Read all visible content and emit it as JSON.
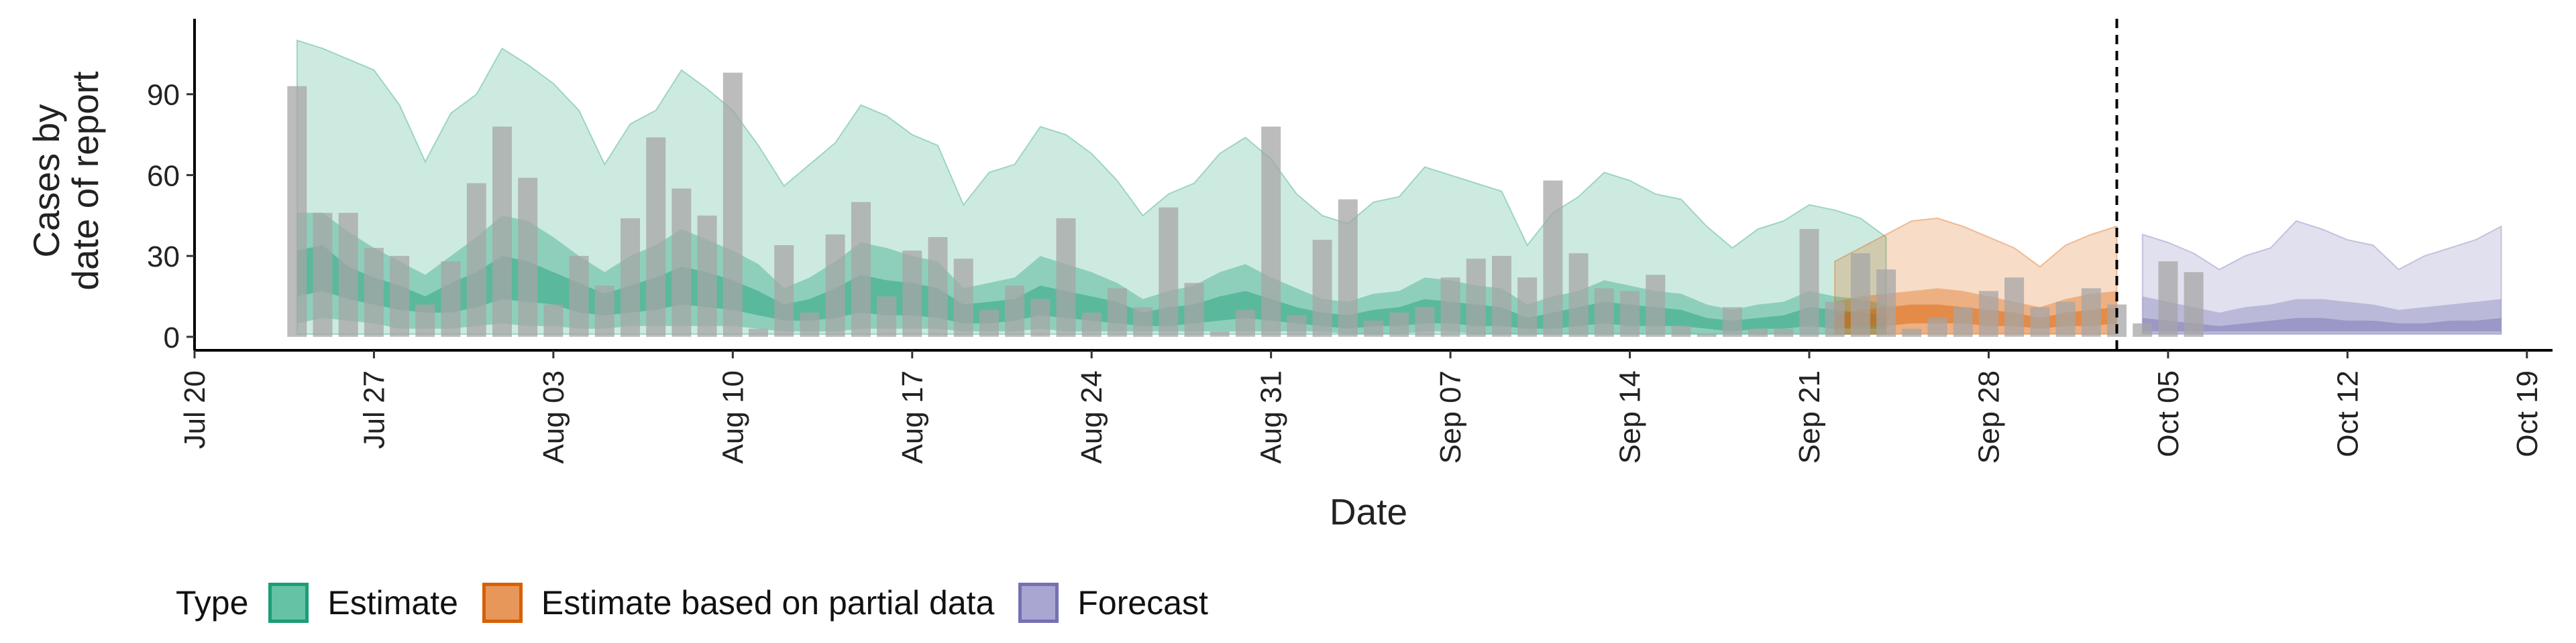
{
  "chart_data": {
    "type": "area",
    "title": "",
    "xlabel": "Date",
    "ylabel_lines": [
      "Cases by",
      "date of report"
    ],
    "x_start": "2020-07-20",
    "xlim": [
      "2020-07-20",
      "2020-10-20"
    ],
    "ylim": [
      -5,
      118
    ],
    "y_ticks": [
      0,
      30,
      60,
      90
    ],
    "x_ticks": [
      {
        "date": "2020-07-20",
        "label": "Jul 20"
      },
      {
        "date": "2020-07-27",
        "label": "Jul 27"
      },
      {
        "date": "2020-08-03",
        "label": "Aug 03"
      },
      {
        "date": "2020-08-10",
        "label": "Aug 10"
      },
      {
        "date": "2020-08-17",
        "label": "Aug 17"
      },
      {
        "date": "2020-08-24",
        "label": "Aug 24"
      },
      {
        "date": "2020-08-31",
        "label": "Aug 31"
      },
      {
        "date": "2020-09-07",
        "label": "Sep 07"
      },
      {
        "date": "2020-09-14",
        "label": "Sep 14"
      },
      {
        "date": "2020-09-21",
        "label": "Sep 21"
      },
      {
        "date": "2020-09-28",
        "label": "Sep 28"
      },
      {
        "date": "2020-10-05",
        "label": "Oct 05"
      },
      {
        "date": "2020-10-12",
        "label": "Oct 12"
      },
      {
        "date": "2020-10-19",
        "label": "Oct 19"
      }
    ],
    "reference_line_date": "2020-10-03",
    "grid": false,
    "legend": {
      "placement": "bottom",
      "title": "Type",
      "items": [
        {
          "label": "Estimate",
          "fill": "#66c2a5",
          "stroke": "#1b9e77"
        },
        {
          "label": "Estimate based on partial data",
          "fill": "#e8975a",
          "stroke": "#d95f02"
        },
        {
          "label": "Forecast",
          "fill": "#a9a6d2",
          "stroke": "#7570b3"
        }
      ]
    },
    "bars": {
      "color": "#a6a6a6",
      "start_date": "2020-07-24",
      "values": [
        93,
        46,
        46,
        33,
        30,
        12,
        28,
        57,
        78,
        59,
        12,
        30,
        19,
        44,
        74,
        55,
        45,
        98,
        3,
        34,
        9,
        38,
        50,
        15,
        32,
        37,
        29,
        10,
        19,
        14,
        44,
        9,
        18,
        11,
        48,
        20,
        2,
        10,
        78,
        8,
        36,
        51,
        6,
        9,
        11,
        22,
        29,
        30,
        22,
        58,
        31,
        18,
        17,
        23,
        4,
        1,
        11,
        3,
        3,
        40,
        13,
        31,
        25,
        3,
        7,
        11,
        17,
        22,
        11,
        13,
        18,
        12,
        5,
        28,
        24
      ]
    },
    "series": [
      {
        "name": "Estimate",
        "color": "#1b9e77",
        "start_date": "2020-07-24",
        "ci90": [
          [
            1,
            110
          ],
          [
            1,
            107
          ],
          [
            1,
            103
          ],
          [
            1,
            99
          ],
          [
            1,
            86
          ],
          [
            1,
            65
          ],
          [
            1,
            83
          ],
          [
            1,
            90
          ],
          [
            1,
            107
          ],
          [
            1,
            101
          ],
          [
            1,
            94
          ],
          [
            1,
            84
          ],
          [
            1,
            64
          ],
          [
            1,
            79
          ],
          [
            1,
            84
          ],
          [
            1,
            99
          ],
          [
            1,
            92
          ],
          [
            1,
            84
          ],
          [
            1,
            71
          ],
          [
            1,
            56
          ],
          [
            1,
            64
          ],
          [
            1,
            72
          ],
          [
            1,
            86
          ],
          [
            1,
            82
          ],
          [
            1,
            75
          ],
          [
            1,
            71
          ],
          [
            1,
            49
          ],
          [
            1,
            61
          ],
          [
            1,
            64
          ],
          [
            1,
            78
          ],
          [
            1,
            75
          ],
          [
            1,
            68
          ],
          [
            1,
            58
          ],
          [
            1,
            45
          ],
          [
            1,
            53
          ],
          [
            1,
            57
          ],
          [
            1,
            68
          ],
          [
            1,
            74
          ],
          [
            1,
            66
          ],
          [
            1,
            53
          ],
          [
            1,
            45
          ],
          [
            1,
            42
          ],
          [
            1,
            50
          ],
          [
            1,
            52
          ],
          [
            1,
            63
          ],
          [
            1,
            60
          ],
          [
            1,
            57
          ],
          [
            1,
            54
          ],
          [
            1,
            34
          ],
          [
            1,
            46
          ],
          [
            1,
            52
          ],
          [
            1,
            61
          ],
          [
            1,
            58
          ],
          [
            1,
            53
          ],
          [
            1,
            51
          ],
          [
            1,
            41
          ],
          [
            1,
            33
          ],
          [
            1,
            40
          ],
          [
            1,
            43
          ],
          [
            1,
            49
          ],
          [
            1,
            47
          ],
          [
            1,
            44
          ],
          [
            1,
            37
          ]
        ],
        "ci50": [
          [
            5,
            46
          ],
          [
            7,
            46
          ],
          [
            6,
            39
          ],
          [
            5,
            33
          ],
          [
            3,
            28
          ],
          [
            3,
            23
          ],
          [
            3,
            30
          ],
          [
            4,
            37
          ],
          [
            5,
            45
          ],
          [
            4,
            43
          ],
          [
            4,
            37
          ],
          [
            3,
            30
          ],
          [
            3,
            24
          ],
          [
            4,
            30
          ],
          [
            4,
            34
          ],
          [
            4,
            40
          ],
          [
            4,
            36
          ],
          [
            4,
            32
          ],
          [
            3,
            27
          ],
          [
            2,
            18
          ],
          [
            2,
            22
          ],
          [
            2,
            28
          ],
          [
            3,
            35
          ],
          [
            3,
            33
          ],
          [
            3,
            30
          ],
          [
            3,
            28
          ],
          [
            2,
            18
          ],
          [
            2,
            20
          ],
          [
            2,
            22
          ],
          [
            3,
            30
          ],
          [
            2,
            27
          ],
          [
            2,
            24
          ],
          [
            2,
            20
          ],
          [
            2,
            14
          ],
          [
            2,
            17
          ],
          [
            2,
            19
          ],
          [
            2,
            24
          ],
          [
            2,
            27
          ],
          [
            2,
            22
          ],
          [
            2,
            18
          ],
          [
            2,
            14
          ],
          [
            1,
            13
          ],
          [
            1,
            16
          ],
          [
            1,
            17
          ],
          [
            2,
            22
          ],
          [
            2,
            21
          ],
          [
            1,
            19
          ],
          [
            1,
            18
          ],
          [
            1,
            12
          ],
          [
            1,
            15
          ],
          [
            1,
            17
          ],
          [
            1,
            21
          ],
          [
            1,
            19
          ],
          [
            1,
            17
          ],
          [
            1,
            16
          ],
          [
            1,
            12
          ],
          [
            1,
            10
          ],
          [
            1,
            12
          ],
          [
            1,
            13
          ],
          [
            1,
            17
          ],
          [
            1,
            15
          ],
          [
            1,
            14
          ],
          [
            1,
            12
          ]
        ],
        "ci20": [
          [
            15,
            32
          ],
          [
            17,
            34
          ],
          [
            14,
            26
          ],
          [
            12,
            22
          ],
          [
            10,
            19
          ],
          [
            9,
            15
          ],
          [
            9,
            20
          ],
          [
            11,
            24
          ],
          [
            14,
            30
          ],
          [
            13,
            28
          ],
          [
            12,
            24
          ],
          [
            9,
            20
          ],
          [
            8,
            16
          ],
          [
            9,
            19
          ],
          [
            10,
            22
          ],
          [
            12,
            26
          ],
          [
            11,
            24
          ],
          [
            10,
            21
          ],
          [
            8,
            17
          ],
          [
            6,
            12
          ],
          [
            6,
            14
          ],
          [
            7,
            18
          ],
          [
            9,
            23
          ],
          [
            8,
            21
          ],
          [
            8,
            20
          ],
          [
            7,
            18
          ],
          [
            5,
            12
          ],
          [
            5,
            13
          ],
          [
            6,
            14
          ],
          [
            8,
            19
          ],
          [
            7,
            17
          ],
          [
            6,
            15
          ],
          [
            5,
            13
          ],
          [
            4,
            9
          ],
          [
            4,
            11
          ],
          [
            5,
            12
          ],
          [
            6,
            15
          ],
          [
            7,
            17
          ],
          [
            6,
            14
          ],
          [
            5,
            11
          ],
          [
            4,
            9
          ],
          [
            3,
            8
          ],
          [
            4,
            10
          ],
          [
            4,
            11
          ],
          [
            5,
            14
          ],
          [
            5,
            13
          ],
          [
            4,
            12
          ],
          [
            4,
            11
          ],
          [
            3,
            7
          ],
          [
            3,
            9
          ],
          [
            4,
            11
          ],
          [
            5,
            13
          ],
          [
            4,
            12
          ],
          [
            4,
            11
          ],
          [
            4,
            10
          ],
          [
            3,
            7
          ],
          [
            2,
            6
          ],
          [
            3,
            7
          ],
          [
            3,
            8
          ],
          [
            4,
            11
          ],
          [
            3,
            10
          ],
          [
            3,
            9
          ],
          [
            3,
            8
          ]
        ]
      },
      {
        "name": "Estimate based on partial data",
        "color": "#d95f02",
        "start_date": "2020-09-22",
        "ci90": [
          [
            1,
            28
          ],
          [
            1,
            33
          ],
          [
            1,
            38
          ],
          [
            1,
            43
          ],
          [
            1,
            44
          ],
          [
            1,
            41
          ],
          [
            1,
            37
          ],
          [
            1,
            33
          ],
          [
            1,
            26
          ],
          [
            1,
            34
          ],
          [
            1,
            38
          ],
          [
            1,
            41
          ]
        ],
        "ci50": [
          [
            1,
            13
          ],
          [
            1,
            15
          ],
          [
            1,
            16
          ],
          [
            1,
            17
          ],
          [
            1,
            18
          ],
          [
            1,
            17
          ],
          [
            1,
            15
          ],
          [
            1,
            13
          ],
          [
            1,
            11
          ],
          [
            1,
            14
          ],
          [
            1,
            16
          ],
          [
            1,
            17
          ]
        ],
        "ci20": [
          [
            3,
            8
          ],
          [
            4,
            10
          ],
          [
            4,
            11
          ],
          [
            5,
            12
          ],
          [
            5,
            12
          ],
          [
            5,
            11
          ],
          [
            4,
            10
          ],
          [
            4,
            9
          ],
          [
            3,
            7
          ],
          [
            4,
            9
          ],
          [
            4,
            10
          ],
          [
            5,
            11
          ]
        ]
      },
      {
        "name": "Forecast",
        "color": "#7570b3",
        "start_date": "2020-10-04",
        "ci90": [
          [
            1,
            38
          ],
          [
            1,
            35
          ],
          [
            1,
            31
          ],
          [
            1,
            25
          ],
          [
            1,
            30
          ],
          [
            1,
            33
          ],
          [
            1,
            43
          ],
          [
            1,
            40
          ],
          [
            1,
            36
          ],
          [
            1,
            34
          ],
          [
            1,
            25
          ],
          [
            1,
            30
          ],
          [
            1,
            33
          ],
          [
            1,
            36
          ],
          [
            1,
            41
          ]
        ],
        "ci50": [
          [
            1,
            15
          ],
          [
            1,
            13
          ],
          [
            1,
            11
          ],
          [
            1,
            9
          ],
          [
            1,
            11
          ],
          [
            1,
            12
          ],
          [
            1,
            14
          ],
          [
            1,
            14
          ],
          [
            1,
            13
          ],
          [
            1,
            12
          ],
          [
            1,
            10
          ],
          [
            1,
            11
          ],
          [
            1,
            12
          ],
          [
            1,
            13
          ],
          [
            1,
            14
          ]
        ],
        "ci20": [
          [
            2,
            7
          ],
          [
            2,
            6
          ],
          [
            2,
            5
          ],
          [
            2,
            4
          ],
          [
            2,
            5
          ],
          [
            2,
            6
          ],
          [
            2,
            7
          ],
          [
            2,
            7
          ],
          [
            2,
            6
          ],
          [
            2,
            6
          ],
          [
            2,
            5
          ],
          [
            2,
            5
          ],
          [
            2,
            6
          ],
          [
            2,
            6
          ],
          [
            2,
            7
          ]
        ]
      }
    ]
  }
}
